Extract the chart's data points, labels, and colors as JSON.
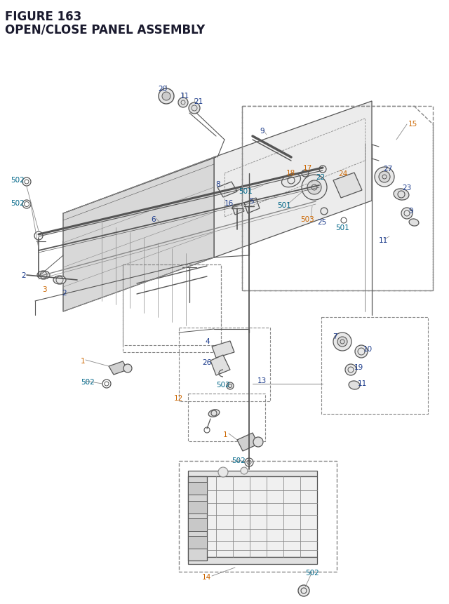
{
  "title_line1": "FIGURE 163",
  "title_line2": "OPEN/CLOSE PANEL ASSEMBLY",
  "title_color": "#1a1a2e",
  "title_fontsize": 12,
  "bg_color": "#ffffff",
  "lc_default": "#333333",
  "lc_orange": "#cc6600",
  "lc_teal": "#006688",
  "lc_blue": "#1a3a8b",
  "lc_red": "#cc2200",
  "label_fontsize": 7.5
}
